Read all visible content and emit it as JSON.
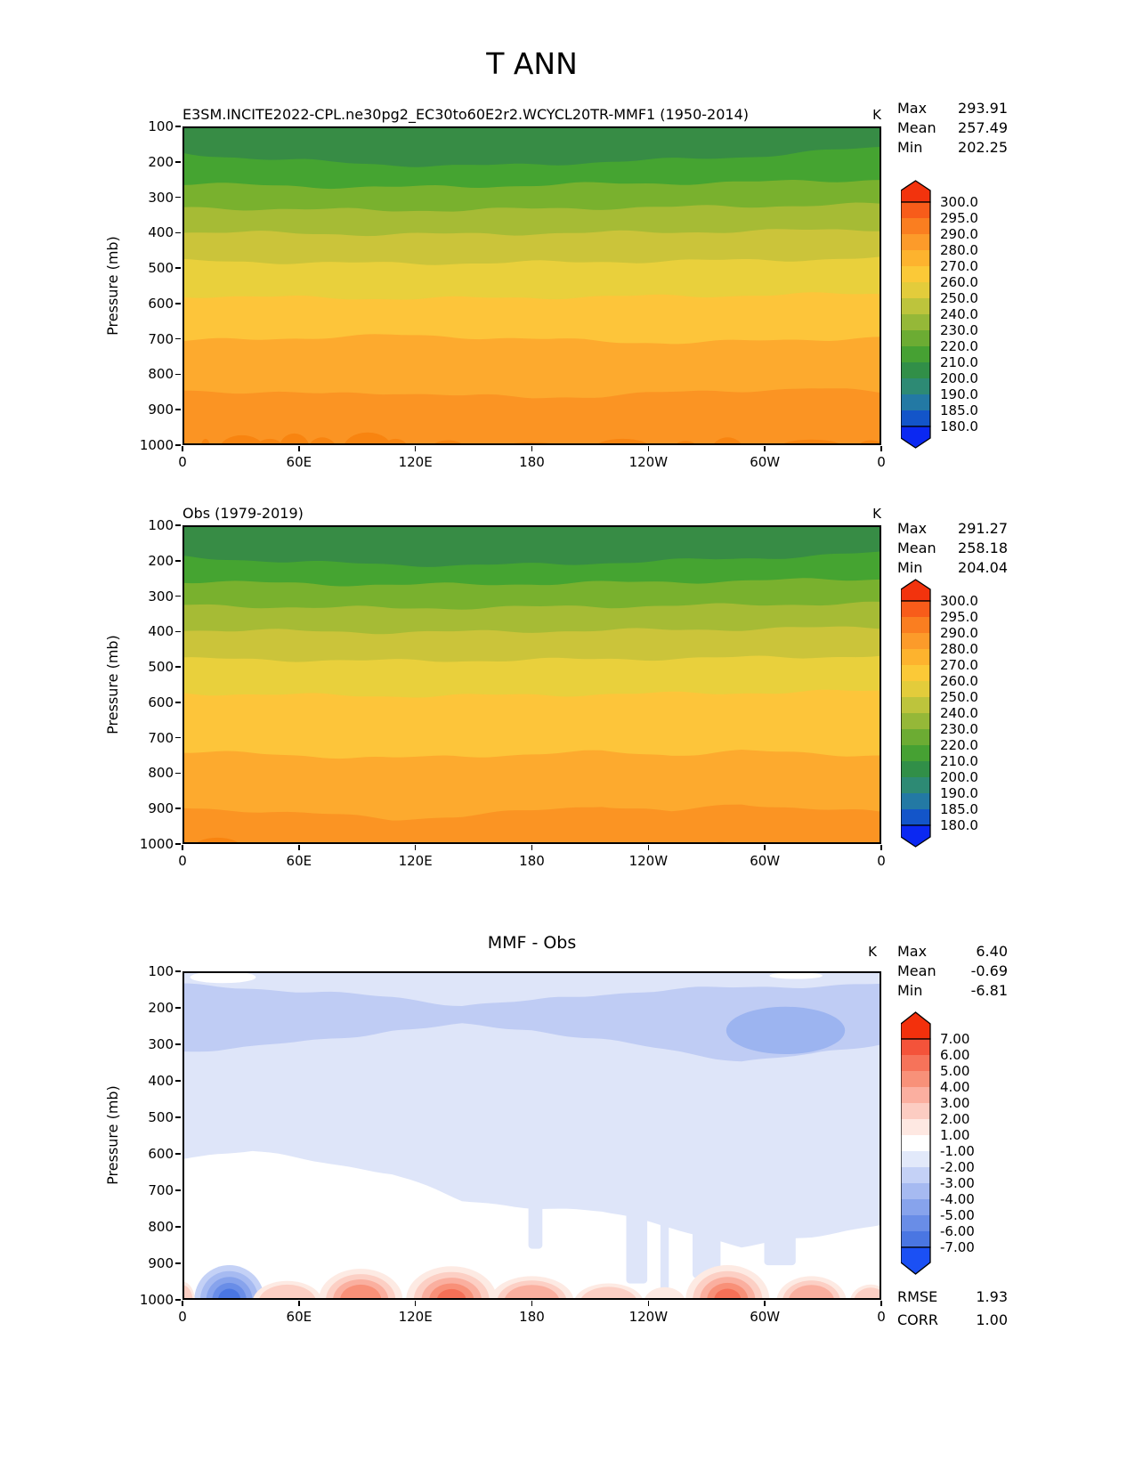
{
  "figure_title": "T ANN",
  "stats_labels": {
    "max": "Max",
    "mean": "Mean",
    "min": "Min",
    "rmse": "RMSE",
    "corr": "CORR"
  },
  "axes": {
    "ylabel": "Pressure (mb)",
    "pressure_ticks": [
      "100",
      "200",
      "300",
      "400",
      "500",
      "600",
      "700",
      "800",
      "900",
      "1000"
    ],
    "longitude_ticks": [
      "0",
      "60E",
      "120E",
      "180",
      "120W",
      "60W",
      "0"
    ]
  },
  "panels": [
    {
      "title": "E3SM.INCITE2022-CPL.ne30pg2_EC30to60E2r2.WCYCL20TR-MMF1 (1950-2014)",
      "unit": "K",
      "stats": {
        "max": "293.91",
        "mean": "257.49",
        "min": "202.25"
      }
    },
    {
      "title": "Obs (1979-2019)",
      "unit": "K",
      "stats": {
        "max": "291.27",
        "mean": "258.18",
        "min": "204.04"
      }
    },
    {
      "title": "MMF - Obs",
      "unit": "K",
      "stats": {
        "max": "6.40",
        "mean": "-0.69",
        "min": "-6.81"
      },
      "rmse": "1.93",
      "corr": "1.00"
    }
  ],
  "colorbars": {
    "temperature": {
      "tick_labels": [
        "300.0",
        "295.0",
        "290.0",
        "280.0",
        "270.0",
        "260.0",
        "250.0",
        "240.0",
        "230.0",
        "220.0",
        "210.0",
        "200.0",
        "190.0",
        "185.0",
        "180.0"
      ],
      "segment_colors": [
        "#f85c1a",
        "#fa7e20",
        "#fc9b2a",
        "#fdb32e",
        "#fbc937",
        "#e3cc3b",
        "#bdc43c",
        "#95b838",
        "#6cac33",
        "#46a133",
        "#318f48",
        "#2d8a74",
        "#2379a4",
        "#1355c9"
      ],
      "over_color": "#f2330d",
      "under_color": "#0b28f2"
    },
    "difference": {
      "tick_labels": [
        "7.00",
        "6.00",
        "5.00",
        "4.00",
        "3.00",
        "2.00",
        "1.00",
        "-1.00",
        "-2.00",
        "-3.00",
        "-4.00",
        "-5.00",
        "-6.00",
        "-7.00"
      ],
      "segment_colors": [
        "#f4533a",
        "#f6735a",
        "#f89179",
        "#fbafa0",
        "#fcccc2",
        "#fee8e2",
        "#ffffff",
        "#e2e9fa",
        "#c4d1f6",
        "#a6baf1",
        "#87a3ec",
        "#698de7",
        "#4a76e2"
      ],
      "over_color": "#f3300c",
      "under_color": "#1b50f4"
    }
  },
  "chart_data": {
    "type": "heatmap",
    "subtype": "filled_contour_pressure_vs_longitude",
    "x_axis": {
      "label": "Longitude",
      "ticks": [
        "0",
        "60E",
        "120E",
        "180",
        "120W",
        "60W",
        "0"
      ]
    },
    "y_axis": {
      "label": "Pressure (mb)",
      "range": [
        100,
        1000
      ],
      "ticks": [
        100,
        200,
        300,
        400,
        500,
        600,
        700,
        800,
        900,
        1000
      ]
    },
    "panels": [
      {
        "name": "model",
        "title": "E3SM.INCITE2022-CPL.ne30pg2_EC30to60E2r2.WCYCL20TR-MMF1 (1950-2014)",
        "units": "K",
        "max": 293.91,
        "mean": 257.49,
        "min": 202.25,
        "band_levels_k": [
          "200-210",
          "210-220",
          "220-230",
          "230-240",
          "240-250",
          "250-260",
          "260-270",
          "270-280",
          "280-290"
        ],
        "band_colors": [
          "#378c45",
          "#45a431",
          "#79b12e",
          "#a6bb35",
          "#cbc43a",
          "#e9d03c",
          "#fdc53a",
          "#fdaa2e",
          "#fb9423"
        ],
        "hot_spot_level_k": "290-295",
        "hot_spot_color": "#f88410",
        "boundaries": [
          {
            "level": 210,
            "pressure_mb": [
              175,
              190,
              200,
              208,
              212,
              208,
              200,
              194,
              186,
              172,
              160
            ]
          },
          {
            "level": 220,
            "pressure_mb": [
              262,
              266,
              270,
              272,
              270,
              266,
              262,
              260,
              258,
              254,
              250
            ]
          },
          {
            "level": 230,
            "pressure_mb": [
              330,
              332,
              335,
              337,
              336,
              333,
              330,
              328,
              326,
              322,
              320
            ]
          },
          {
            "level": 240,
            "pressure_mb": [
              398,
              400,
              403,
              405,
              404,
              402,
              400,
              398,
              396,
              393,
              390
            ]
          },
          {
            "level": 250,
            "pressure_mb": [
              480,
              482,
              485,
              487,
              486,
              484,
              482,
              480,
              478,
              475,
              472
            ]
          },
          {
            "level": 260,
            "pressure_mb": [
              578,
              581,
              584,
              586,
              585,
              583,
              581,
              579,
              577,
              574,
              572
            ]
          },
          {
            "level": 270,
            "pressure_mb": [
              706,
              701,
              695,
              690,
              694,
              700,
              707,
              711,
              707,
              701,
              696
            ]
          },
          {
            "level": 280,
            "pressure_mb": [
              845,
              850,
              856,
              851,
              860,
              866,
              861,
              851,
              845,
              840,
              851
            ]
          }
        ],
        "hot_spots": [
          {
            "lon_frac": 0.033,
            "pressure_mb": 1012,
            "rx_frac": 0.007,
            "ry_mb": 30
          },
          {
            "lon_frac": 0.085,
            "pressure_mb": 1012,
            "rx_frac": 0.032,
            "ry_mb": 40
          },
          {
            "lon_frac": 0.125,
            "pressure_mb": 1012,
            "rx_frac": 0.02,
            "ry_mb": 30
          },
          {
            "lon_frac": 0.16,
            "pressure_mb": 1012,
            "rx_frac": 0.022,
            "ry_mb": 45
          },
          {
            "lon_frac": 0.2,
            "pressure_mb": 1012,
            "rx_frac": 0.02,
            "ry_mb": 34
          },
          {
            "lon_frac": 0.265,
            "pressure_mb": 1012,
            "rx_frac": 0.035,
            "ry_mb": 48
          },
          {
            "lon_frac": 0.305,
            "pressure_mb": 1012,
            "rx_frac": 0.018,
            "ry_mb": 30
          },
          {
            "lon_frac": 0.38,
            "pressure_mb": 1012,
            "rx_frac": 0.025,
            "ry_mb": 26
          },
          {
            "lon_frac": 0.5,
            "pressure_mb": 1012,
            "rx_frac": 0.05,
            "ry_mb": 20
          },
          {
            "lon_frac": 0.63,
            "pressure_mb": 1012,
            "rx_frac": 0.042,
            "ry_mb": 30
          },
          {
            "lon_frac": 0.72,
            "pressure_mb": 1012,
            "rx_frac": 0.018,
            "ry_mb": 24
          },
          {
            "lon_frac": 0.78,
            "pressure_mb": 1012,
            "rx_frac": 0.022,
            "ry_mb": 34
          },
          {
            "lon_frac": 0.9,
            "pressure_mb": 1012,
            "rx_frac": 0.05,
            "ry_mb": 28
          },
          {
            "lon_frac": 0.985,
            "pressure_mb": 1012,
            "rx_frac": 0.02,
            "ry_mb": 26
          }
        ]
      },
      {
        "name": "obs",
        "title": "Obs (1979-2019)",
        "units": "K",
        "max": 291.27,
        "mean": 258.18,
        "min": 204.04,
        "band_levels_k": [
          "200-210",
          "210-220",
          "220-230",
          "230-240",
          "240-250",
          "250-260",
          "260-270",
          "270-280",
          "280-290"
        ],
        "band_colors": [
          "#378c45",
          "#45a431",
          "#79b12e",
          "#a6bb35",
          "#cbc43a",
          "#e9d03c",
          "#fdc53a",
          "#fdaa2e",
          "#fb9423"
        ],
        "hot_spot_level_k": "290-295",
        "hot_spot_color": "#f88410",
        "boundaries": [
          {
            "level": 210,
            "pressure_mb": [
              190,
              198,
              206,
              211,
              213,
              211,
              206,
              200,
              194,
              186,
              178
            ]
          },
          {
            "level": 220,
            "pressure_mb": [
              258,
              262,
              266,
              268,
              267,
              265,
              262,
              260,
              257,
              254,
              251
            ]
          },
          {
            "level": 230,
            "pressure_mb": [
              327,
              329,
              332,
              334,
              333,
              331,
              329,
              327,
              325,
              322,
              320
            ]
          },
          {
            "level": 240,
            "pressure_mb": [
              395,
              397,
              400,
              402,
              401,
              399,
              397,
              395,
              393,
              390,
              388
            ]
          },
          {
            "level": 250,
            "pressure_mb": [
              477,
              479,
              481,
              483,
              482,
              480,
              478,
              476,
              474,
              471,
              469
            ]
          },
          {
            "level": 260,
            "pressure_mb": [
              574,
              577,
              580,
              582,
              581,
              579,
              577,
              575,
              573,
              570,
              568
            ]
          },
          {
            "level": 270,
            "pressure_mb": [
              740,
              745,
              752,
              758,
              752,
              746,
              740,
              748,
              738,
              744,
              750
            ]
          },
          {
            "level": 280,
            "pressure_mb": [
              900,
              905,
              916,
              930,
              921,
              906,
              890,
              910,
              886,
              900,
              912
            ]
          }
        ],
        "hot_spots": [
          {
            "lon_frac": 0.05,
            "pressure_mb": 1012,
            "rx_frac": 0.035,
            "ry_mb": 30
          },
          {
            "lon_frac": 0.77,
            "pressure_mb": 1012,
            "rx_frac": 0.02,
            "ry_mb": 18
          },
          {
            "lon_frac": 0.9,
            "pressure_mb": 1012,
            "rx_frac": 0.03,
            "ry_mb": 16
          }
        ]
      },
      {
        "name": "difference",
        "title": "MMF - Obs",
        "units": "K",
        "max": 6.4,
        "mean": -0.69,
        "min": -6.81,
        "rmse": 1.93,
        "corr": 1.0,
        "colors": {
          "neg1": "#dee5f9",
          "neg2": "#bfccf4",
          "neg3": "#9cb4f0",
          "warm_rings": [
            "#fdeae3",
            "#fccfc4",
            "#faaf9f",
            "#f89078",
            "#f67057"
          ],
          "cold_rings": [
            "#c4d1f6",
            "#a6baf1",
            "#87a3ec",
            "#698de7",
            "#4a76e2"
          ]
        },
        "negative_region_bottom_mb": [
          610,
          595,
          620,
          655,
          730,
          745,
          760,
          800,
          855,
          830,
          790
        ],
        "band_minus2_top_mb": [
          138,
          146,
          158,
          172,
          192,
          182,
          162,
          150,
          144,
          140,
          136
        ],
        "band_minus2_bottom_mb": [
          318,
          308,
          288,
          262,
          248,
          260,
          288,
          318,
          345,
          330,
          298
        ],
        "core_minus3": {
          "lon_frac": 0.863,
          "pressure_mb": 262,
          "rx_frac": 0.085,
          "ry_mb": 65
        },
        "white_patches": [
          {
            "lon_frac": 0.058,
            "pressure_mb": 116,
            "rx_frac": 0.047,
            "ry_mb": 16
          },
          {
            "lon_frac": 0.878,
            "pressure_mb": 112,
            "rx_frac": 0.038,
            "ry_mb": 9
          }
        ],
        "fingers": [
          {
            "lon_frac": 0.505,
            "width_frac": 0.02,
            "to_mb": 860
          },
          {
            "lon_frac": 0.65,
            "width_frac": 0.03,
            "to_mb": 955
          },
          {
            "lon_frac": 0.69,
            "width_frac": 0.012,
            "to_mb": 995
          },
          {
            "lon_frac": 0.75,
            "width_frac": 0.04,
            "to_mb": 940
          },
          {
            "lon_frac": 0.855,
            "width_frac": 0.045,
            "to_mb": 905
          }
        ],
        "surface_anomalies": [
          {
            "type": "cold",
            "lon_frac": 0.067,
            "pressure_mb": 1000,
            "rx_frac": 0.05,
            "ry_mb": 95,
            "rings": 5
          },
          {
            "type": "warm",
            "lon_frac": 0.0,
            "pressure_mb": 1005,
            "rx_frac": 0.018,
            "ry_mb": 55,
            "rings": 2
          },
          {
            "type": "warm",
            "lon_frac": 0.15,
            "pressure_mb": 1008,
            "rx_frac": 0.05,
            "ry_mb": 60,
            "rings": 2
          },
          {
            "type": "warm",
            "lon_frac": 0.255,
            "pressure_mb": 1000,
            "rx_frac": 0.06,
            "ry_mb": 85,
            "rings": 4
          },
          {
            "type": "warm",
            "lon_frac": 0.385,
            "pressure_mb": 1000,
            "rx_frac": 0.065,
            "ry_mb": 92,
            "rings": 5
          },
          {
            "type": "warm",
            "lon_frac": 0.5,
            "pressure_mb": 1005,
            "rx_frac": 0.06,
            "ry_mb": 70,
            "rings": 3
          },
          {
            "type": "warm",
            "lon_frac": 0.61,
            "pressure_mb": 1010,
            "rx_frac": 0.05,
            "ry_mb": 55,
            "rings": 2
          },
          {
            "type": "warm",
            "lon_frac": 0.69,
            "pressure_mb": 1010,
            "rx_frac": 0.03,
            "ry_mb": 45,
            "rings": 1
          },
          {
            "type": "warm",
            "lon_frac": 0.78,
            "pressure_mb": 1000,
            "rx_frac": 0.06,
            "ry_mb": 95,
            "rings": 5
          },
          {
            "type": "warm",
            "lon_frac": 0.9,
            "pressure_mb": 1005,
            "rx_frac": 0.05,
            "ry_mb": 70,
            "rings": 3
          },
          {
            "type": "warm",
            "lon_frac": 0.985,
            "pressure_mb": 1008,
            "rx_frac": 0.03,
            "ry_mb": 50,
            "rings": 2
          }
        ]
      }
    ]
  }
}
